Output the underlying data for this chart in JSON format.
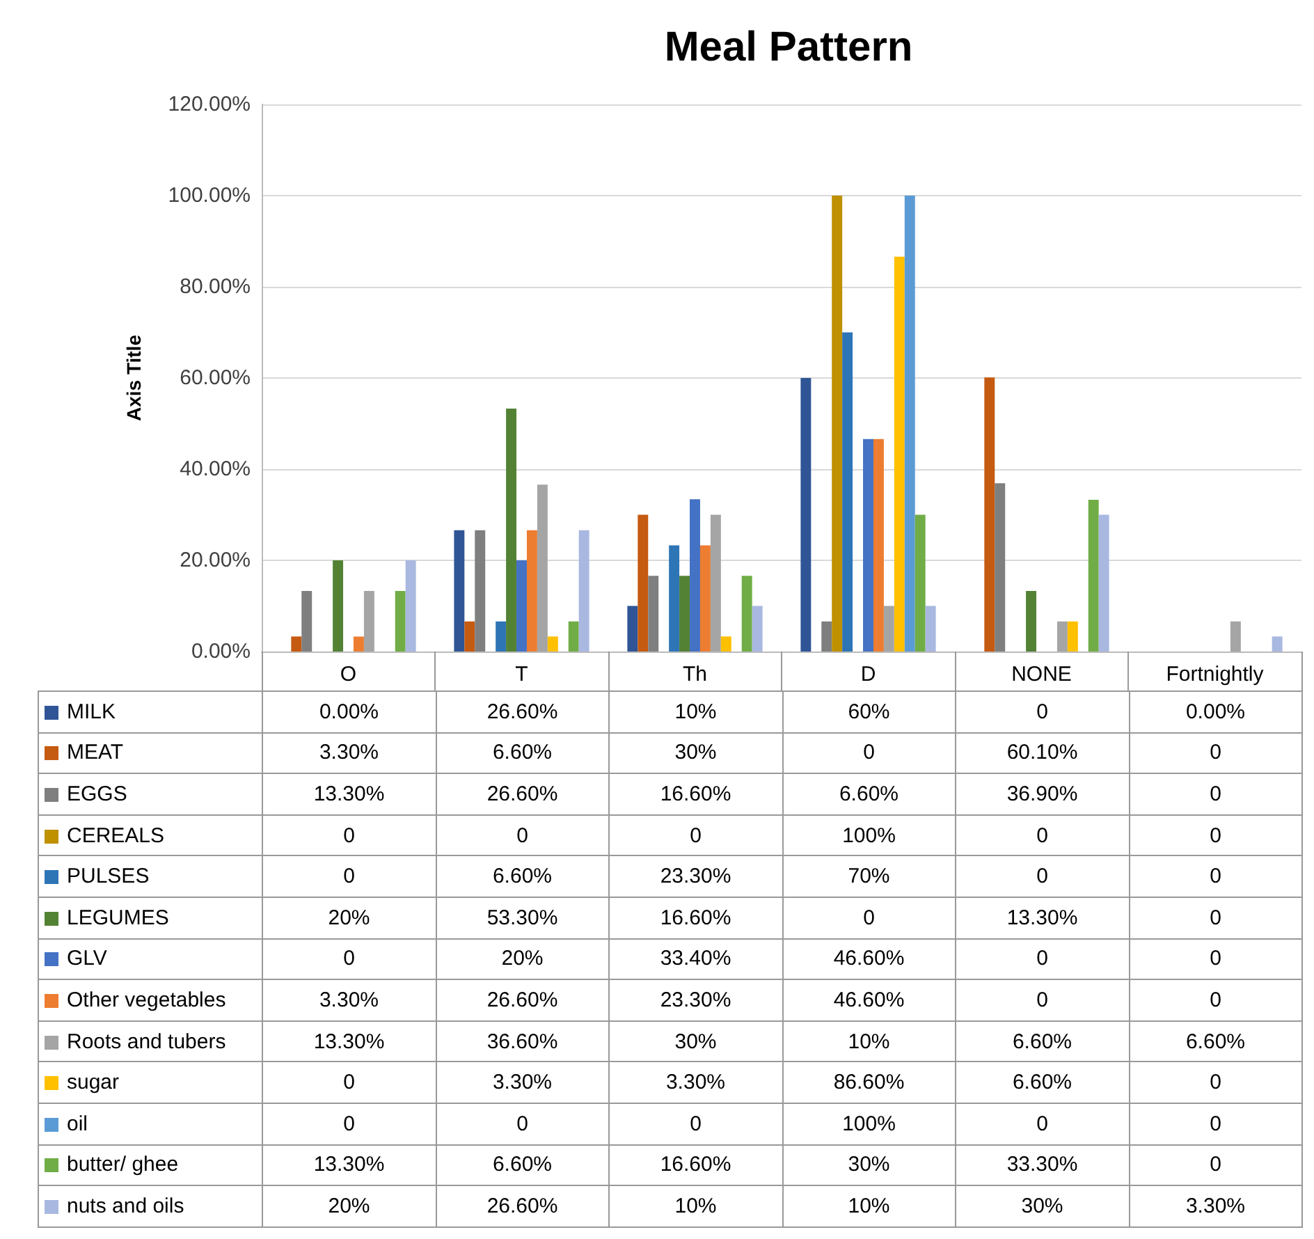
{
  "chart_data": {
    "type": "bar",
    "title": "Meal Pattern",
    "ylabel": "Axis Title",
    "categories": [
      "O",
      "T",
      "Th",
      "D",
      "NONE",
      "Fortnightly"
    ],
    "ylim": [
      0,
      120
    ],
    "yticks": [
      {
        "value": 0,
        "label": "0.00%"
      },
      {
        "value": 20,
        "label": "20.00%"
      },
      {
        "value": 40,
        "label": "40.00%"
      },
      {
        "value": 60,
        "label": "60.00%"
      },
      {
        "value": 80,
        "label": "80.00%"
      },
      {
        "value": 100,
        "label": "100.00%"
      },
      {
        "value": 120,
        "label": "120.00%"
      }
    ],
    "grid": "y",
    "legend": "bottom",
    "series": [
      {
        "name": "MILK",
        "color": "#2f5597",
        "values": [
          0,
          26.6,
          10,
          60,
          0,
          0
        ],
        "value_labels": [
          "0.00%",
          "26.60%",
          "10%",
          "60%",
          "0",
          "0.00%"
        ]
      },
      {
        "name": "MEAT",
        "color": "#c55a11",
        "values": [
          3.3,
          6.6,
          30,
          0,
          60.1,
          0
        ],
        "value_labels": [
          "3.30%",
          "6.60%",
          "30%",
          "0",
          "60.10%",
          "0"
        ]
      },
      {
        "name": "EGGS",
        "color": "#7f7f7f",
        "values": [
          13.3,
          26.6,
          16.6,
          6.6,
          36.9,
          0
        ],
        "value_labels": [
          "13.30%",
          "26.60%",
          "16.60%",
          "6.60%",
          "36.90%",
          "0"
        ]
      },
      {
        "name": "CEREALS",
        "color": "#bf9000",
        "values": [
          0,
          0,
          0,
          100,
          0,
          0
        ],
        "value_labels": [
          "0",
          "0",
          "0",
          "100%",
          "0",
          "0"
        ]
      },
      {
        "name": "PULSES",
        "color": "#2e75b6",
        "values": [
          0,
          6.6,
          23.3,
          70,
          0,
          0
        ],
        "value_labels": [
          "0",
          "6.60%",
          "23.30%",
          "70%",
          "0",
          "0"
        ]
      },
      {
        "name": "LEGUMES",
        "color": "#548235",
        "values": [
          20,
          53.3,
          16.6,
          0,
          13.3,
          0
        ],
        "value_labels": [
          "20%",
          "53.30%",
          "16.60%",
          "0",
          "13.30%",
          "0"
        ]
      },
      {
        "name": "GLV",
        "color": "#4472c4",
        "values": [
          0,
          20,
          33.4,
          46.6,
          0,
          0
        ],
        "value_labels": [
          "0",
          "20%",
          "33.40%",
          "46.60%",
          "0",
          "0"
        ]
      },
      {
        "name": "Other vegetables",
        "color": "#ed7d31",
        "values": [
          3.3,
          26.6,
          23.3,
          46.6,
          0,
          0
        ],
        "value_labels": [
          "3.30%",
          "26.60%",
          "23.30%",
          "46.60%",
          "0",
          "0"
        ]
      },
      {
        "name": "Roots and tubers",
        "color": "#a5a5a5",
        "values": [
          13.3,
          36.6,
          30,
          10,
          6.6,
          6.6
        ],
        "value_labels": [
          "13.30%",
          "36.60%",
          "30%",
          "10%",
          "6.60%",
          "6.60%"
        ]
      },
      {
        "name": "sugar",
        "color": "#ffc000",
        "values": [
          0,
          3.3,
          3.3,
          86.6,
          6.6,
          0
        ],
        "value_labels": [
          "0",
          "3.30%",
          "3.30%",
          "86.60%",
          "6.60%",
          "0"
        ]
      },
      {
        "name": "oil",
        "color": "#5b9bd5",
        "values": [
          0,
          0,
          0,
          100,
          0,
          0
        ],
        "value_labels": [
          "0",
          "0",
          "0",
          "100%",
          "0",
          "0"
        ]
      },
      {
        "name": "butter/ ghee",
        "color": "#70ad47",
        "values": [
          13.3,
          6.6,
          16.6,
          30,
          33.3,
          0
        ],
        "value_labels": [
          "13.30%",
          "6.60%",
          "16.60%",
          "30%",
          "33.30%",
          "0"
        ]
      },
      {
        "name": "nuts and oils",
        "color": "#a9b8e0",
        "values": [
          20,
          26.6,
          10,
          10,
          30,
          3.3
        ],
        "value_labels": [
          "20%",
          "26.60%",
          "10%",
          "10%",
          "30%",
          "3.30%"
        ]
      }
    ]
  }
}
